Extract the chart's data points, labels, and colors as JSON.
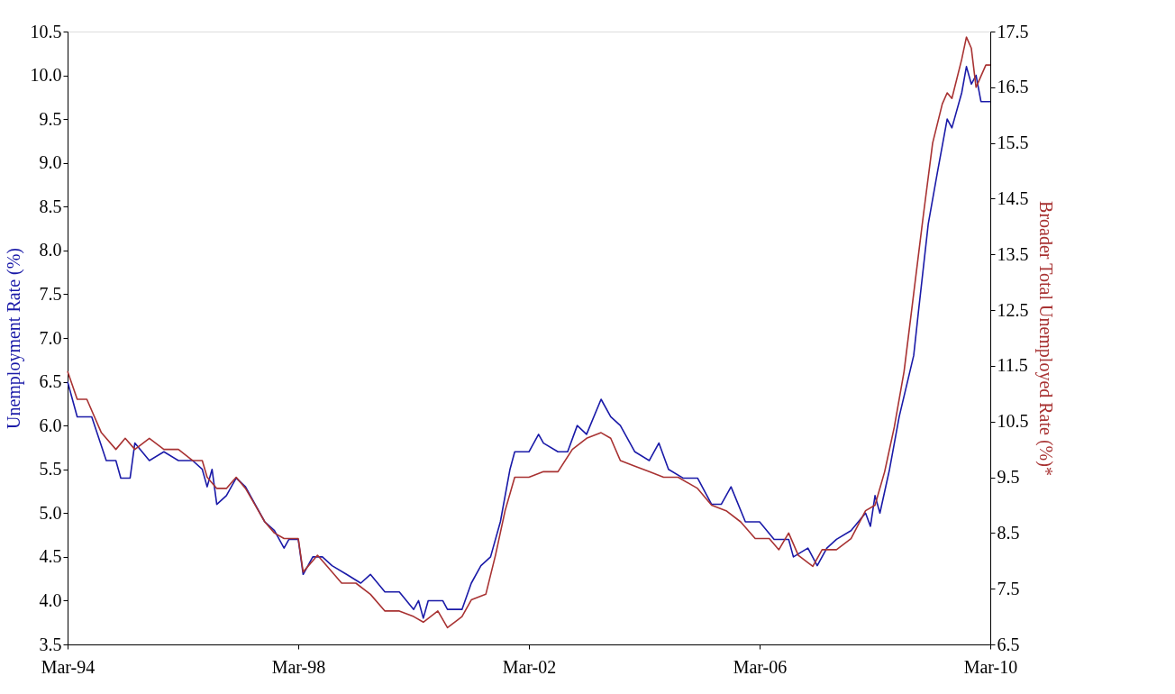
{
  "chart_data": {
    "type": "line",
    "ylabel": "Unemployment Rate (%)",
    "y2label": "Broader Total Unemployed Rate (%)*",
    "xlim": [
      "1994-03",
      "2010-03"
    ],
    "xticks": [
      {
        "value": "1994-03",
        "label": "Mar-94"
      },
      {
        "value": "1998-03",
        "label": "Mar-98"
      },
      {
        "value": "2002-03",
        "label": "Mar-02"
      },
      {
        "value": "2006-03",
        "label": "Mar-06"
      },
      {
        "value": "2010-03",
        "label": "Mar-10"
      }
    ],
    "ylim": [
      3.5,
      10.5
    ],
    "yticks": [
      3.5,
      {
        "value": 4,
        "label": "4.0"
      },
      4.5,
      {
        "value": 5,
        "label": "5.0"
      },
      5.5,
      {
        "value": 6,
        "label": "6.0"
      },
      6.5,
      {
        "value": 7,
        "label": "7.0"
      },
      7.5,
      {
        "value": 8,
        "label": "8.0"
      },
      8.5,
      {
        "value": 9,
        "label": "9.0"
      },
      9.5,
      {
        "value": 10,
        "label": "10.0"
      },
      10.5
    ],
    "y2lim": [
      6.5,
      17.5
    ],
    "y2ticks": [
      6.5,
      7.5,
      8.5,
      9.5,
      10.5,
      11.5,
      12.5,
      13.5,
      14.5,
      15.5,
      16.5,
      17.5
    ],
    "grid": false,
    "marker": "none",
    "line_style": "solid",
    "series": [
      {
        "color": "#1a1aa8",
        "x": [
          "1994-03",
          "1994-05",
          "1994-08",
          "1994-11",
          "1995-01",
          "1995-02",
          "1995-04",
          "1995-05",
          "1995-08",
          "1995-11",
          "1996-02",
          "1996-05",
          "1996-07",
          "1996-08",
          "1996-09",
          "1996-10",
          "1996-12",
          "1997-02",
          "1997-04",
          "1997-06",
          "1997-08",
          "1997-10",
          "1997-12",
          "1998-01",
          "1998-03",
          "1998-04",
          "1998-06",
          "1998-08",
          "1998-10",
          "1999-01",
          "1999-04",
          "1999-06",
          "1999-09",
          "1999-12",
          "2000-03",
          "2000-04",
          "2000-05",
          "2000-06",
          "2000-09",
          "2000-10",
          "2001-01",
          "2001-03",
          "2001-05",
          "2001-07",
          "2001-09",
          "2001-11",
          "2001-12",
          "2002-03",
          "2002-05",
          "2002-06",
          "2002-09",
          "2002-11",
          "2003-01",
          "2003-03",
          "2003-06",
          "2003-08",
          "2003-10",
          "2004-01",
          "2004-04",
          "2004-06",
          "2004-08",
          "2004-11",
          "2005-02",
          "2005-05",
          "2005-07",
          "2005-09",
          "2005-12",
          "2006-03",
          "2006-06",
          "2006-09",
          "2006-10",
          "2007-01",
          "2007-03",
          "2007-05",
          "2007-07",
          "2007-10",
          "2008-01",
          "2008-02",
          "2008-03",
          "2008-04",
          "2008-06",
          "2008-08",
          "2008-11",
          "2008-12",
          "2009-02",
          "2009-04",
          "2009-06",
          "2009-07",
          "2009-09",
          "2009-10",
          "2009-11",
          "2009-12",
          "2010-01",
          "2010-02",
          "2010-03"
        ],
        "values": [
          6.5,
          6.1,
          6.1,
          5.6,
          5.6,
          5.4,
          5.4,
          5.8,
          5.6,
          5.7,
          5.6,
          5.6,
          5.5,
          5.3,
          5.5,
          5.1,
          5.2,
          5.4,
          5.3,
          5.1,
          4.9,
          4.8,
          4.6,
          4.7,
          4.7,
          4.3,
          4.5,
          4.5,
          4.4,
          4.3,
          4.2,
          4.3,
          4.1,
          4.1,
          3.9,
          4.0,
          3.8,
          4.0,
          4.0,
          3.9,
          3.9,
          4.2,
          4.4,
          4.5,
          4.9,
          5.5,
          5.7,
          5.7,
          5.9,
          5.8,
          5.7,
          5.7,
          6.0,
          5.9,
          6.3,
          6.1,
          6.0,
          5.7,
          5.6,
          5.8,
          5.5,
          5.4,
          5.4,
          5.1,
          5.1,
          5.3,
          4.9,
          4.9,
          4.7,
          4.7,
          4.5,
          4.6,
          4.4,
          4.6,
          4.7,
          4.8,
          5.0,
          4.85,
          5.2,
          5.0,
          5.5,
          6.1,
          6.8,
          7.3,
          8.3,
          8.9,
          9.5,
          9.4,
          9.8,
          10.1,
          9.9,
          10.0,
          9.7,
          9.7,
          9.7
        ]
      },
      {
        "color": "#a83232",
        "axis": "y2",
        "x": [
          "1994-03",
          "1994-05",
          "1994-07",
          "1994-10",
          "1995-01",
          "1995-03",
          "1995-05",
          "1995-08",
          "1995-11",
          "1996-02",
          "1996-05",
          "1996-07",
          "1996-08",
          "1996-10",
          "1996-12",
          "1997-02",
          "1997-04",
          "1997-06",
          "1997-08",
          "1997-10",
          "1997-12",
          "1998-03",
          "1998-04",
          "1998-07",
          "1998-09",
          "1998-12",
          "1999-03",
          "1999-06",
          "1999-09",
          "1999-12",
          "2000-03",
          "2000-05",
          "2000-08",
          "2000-10",
          "2001-01",
          "2001-03",
          "2001-06",
          "2001-08",
          "2001-10",
          "2001-12",
          "2002-03",
          "2002-06",
          "2002-09",
          "2002-12",
          "2003-03",
          "2003-06",
          "2003-08",
          "2003-10",
          "2004-01",
          "2004-04",
          "2004-07",
          "2004-10",
          "2005-02",
          "2005-05",
          "2005-08",
          "2005-11",
          "2006-02",
          "2006-05",
          "2006-07",
          "2006-09",
          "2006-11",
          "2007-02",
          "2007-04",
          "2007-07",
          "2007-10",
          "2008-01",
          "2008-03",
          "2008-05",
          "2008-07",
          "2008-09",
          "2008-11",
          "2009-01",
          "2009-03",
          "2009-05",
          "2009-06",
          "2009-07",
          "2009-09",
          "2009-10",
          "2009-11",
          "2009-12",
          "2010-02",
          "2010-03"
        ],
        "values": [
          11.4,
          10.9,
          10.9,
          10.3,
          10.0,
          10.2,
          10.0,
          10.2,
          10.0,
          10.0,
          9.8,
          9.8,
          9.5,
          9.3,
          9.3,
          9.5,
          9.3,
          9.0,
          8.7,
          8.5,
          8.4,
          8.4,
          7.8,
          8.1,
          7.9,
          7.6,
          7.6,
          7.4,
          7.1,
          7.1,
          7.0,
          6.9,
          7.1,
          6.8,
          7.0,
          7.3,
          7.4,
          8.1,
          8.9,
          9.5,
          9.5,
          9.6,
          9.6,
          10.0,
          10.2,
          10.3,
          10.2,
          9.8,
          9.7,
          9.6,
          9.5,
          9.5,
          9.3,
          9.0,
          8.9,
          8.7,
          8.4,
          8.4,
          8.2,
          8.5,
          8.1,
          7.9,
          8.2,
          8.2,
          8.4,
          8.9,
          9.0,
          9.6,
          10.4,
          11.4,
          12.8,
          14.2,
          15.5,
          16.2,
          16.4,
          16.3,
          17.0,
          17.4,
          17.2,
          16.5,
          16.9,
          16.9
        ]
      }
    ]
  }
}
